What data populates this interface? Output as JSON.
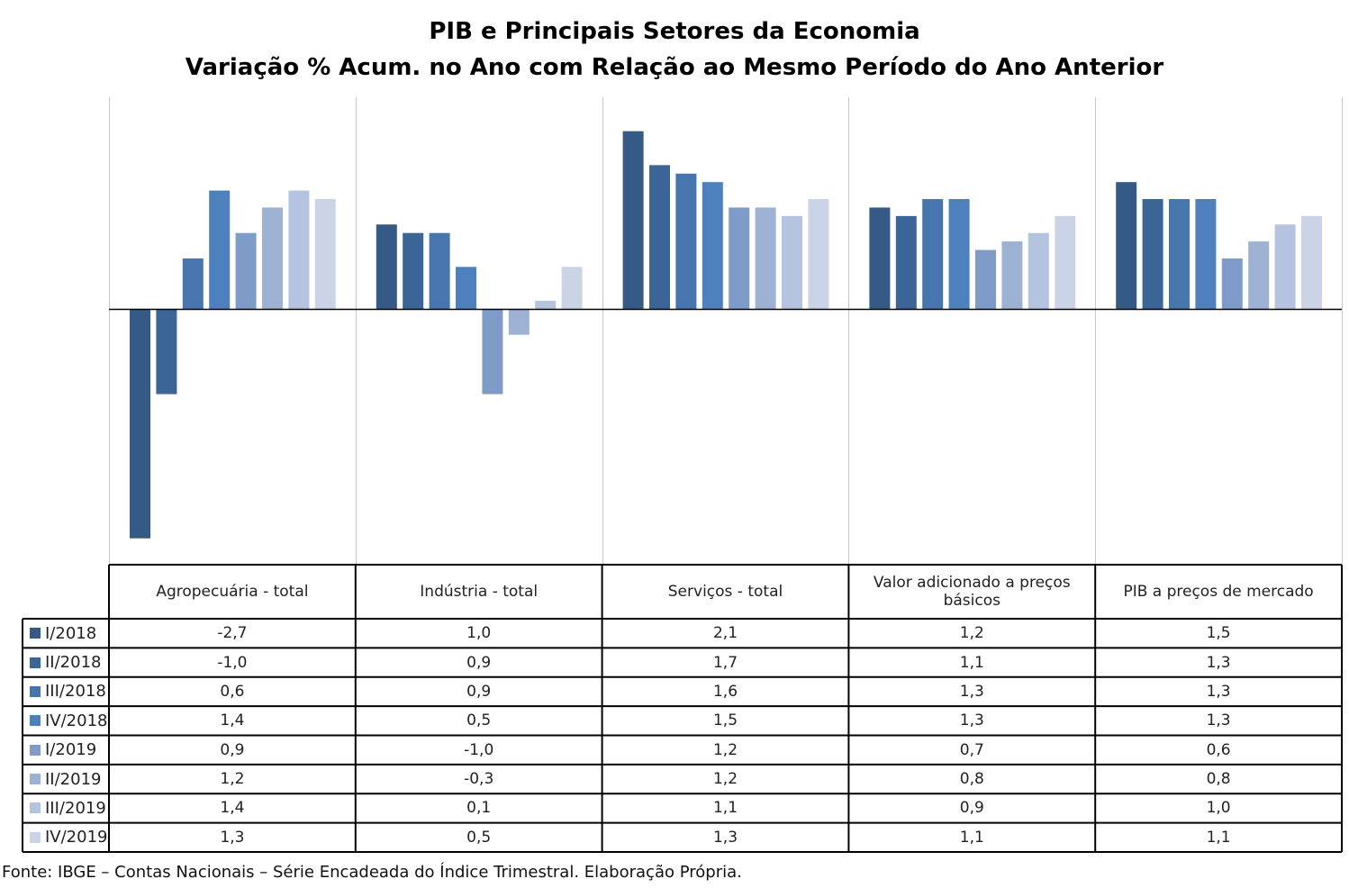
{
  "chart_data": {
    "type": "bar",
    "title": "PIB e Principais Setores da Economia",
    "subtitle": "Variação % Acum. no Ano com Relação ao Mesmo Período do Ano Anterior",
    "categories": [
      "Agropecuária - total",
      "Indústria - total",
      "Serviços - total",
      "Valor adicionado a preços básicos",
      "PIB a preços de mercado"
    ],
    "series": [
      {
        "name": "I/2018",
        "color": "#345A85",
        "values": [
          "-2,7",
          "1,0",
          "2,1",
          "1,2",
          "1,5"
        ]
      },
      {
        "name": "II/2018",
        "color": "#3B6497",
        "values": [
          "-1,0",
          "0,9",
          "1,7",
          "1,1",
          "1,3"
        ]
      },
      {
        "name": "III/2018",
        "color": "#4776AF",
        "values": [
          "0,6",
          "0,9",
          "1,6",
          "1,3",
          "1,3"
        ]
      },
      {
        "name": "IV/2018",
        "color": "#4E80BD",
        "values": [
          "1,4",
          "0,5",
          "1,5",
          "1,3",
          "1,3"
        ]
      },
      {
        "name": "I/2019",
        "color": "#7F9CC8",
        "values": [
          "0,9",
          "-1,0",
          "1,2",
          "0,7",
          "0,6"
        ]
      },
      {
        "name": "II/2019",
        "color": "#9DB1D3",
        "values": [
          "1,2",
          "-0,3",
          "1,2",
          "0,8",
          "0,8"
        ]
      },
      {
        "name": "III/2019",
        "color": "#B4C3DF",
        "values": [
          "1,4",
          "0,1",
          "1,1",
          "0,9",
          "1,0"
        ]
      },
      {
        "name": "IV/2019",
        "color": "#CBD4E6",
        "values": [
          "1,3",
          "0,5",
          "1,3",
          "1,1",
          "1,1"
        ]
      }
    ],
    "ylim": [
      -3,
      2.5
    ],
    "grid": false,
    "legend": "table-left"
  },
  "source": "Fonte: IBGE – Contas Nacionais – Série Encadeada do Índice Trimestral. Elaboração Própria."
}
